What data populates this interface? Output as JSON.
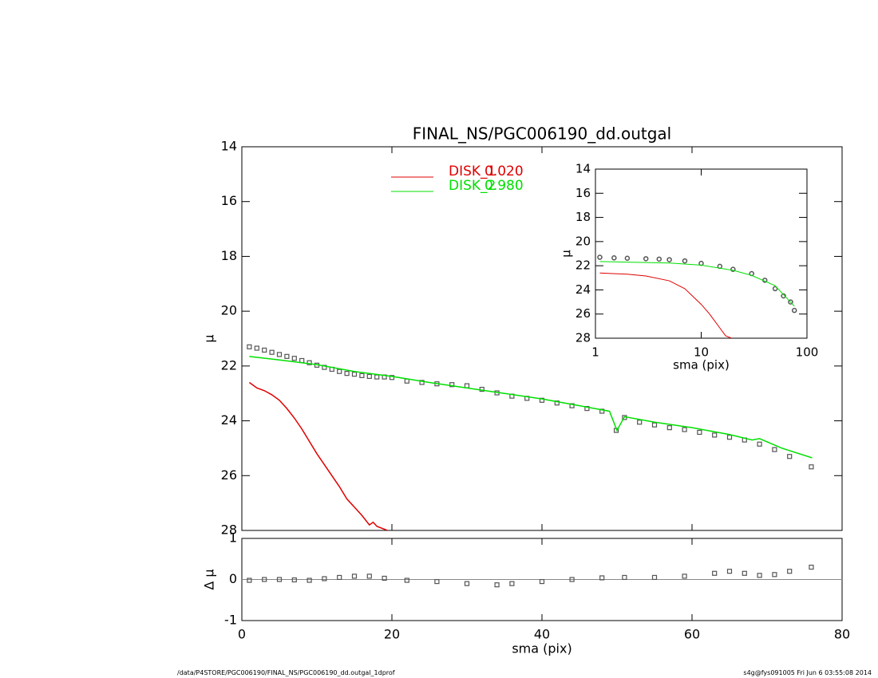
{
  "chart_data": [
    {
      "type": "line",
      "title": "FINAL_NS/PGC006190_dd.outgal",
      "ylabel": "μ",
      "xlim": [
        0,
        80
      ],
      "ylim": [
        28,
        14
      ],
      "xticks": [
        0,
        20,
        40,
        60,
        80
      ],
      "yticks": [
        14,
        16,
        18,
        20,
        22,
        24,
        26,
        28
      ],
      "xtick_labels": false,
      "series": [
        {
          "color": "#555555",
          "marker": "square",
          "x": [
            1,
            2,
            3,
            4,
            5,
            6,
            7,
            8,
            9,
            10,
            11,
            12,
            13,
            14,
            15,
            16,
            17,
            18,
            19,
            20,
            22,
            24,
            26,
            28,
            30,
            32,
            34,
            36,
            38,
            40,
            42,
            44,
            46,
            48,
            49.9,
            51,
            53,
            55,
            57,
            59,
            61,
            63,
            65,
            67,
            69,
            71,
            73,
            75.9
          ],
          "values": [
            21.3,
            21.35,
            21.42,
            21.5,
            21.58,
            21.65,
            21.72,
            21.8,
            21.88,
            21.97,
            22.05,
            22.12,
            22.2,
            22.27,
            22.3,
            22.35,
            22.38,
            22.4,
            22.4,
            22.42,
            22.55,
            22.6,
            22.65,
            22.68,
            22.72,
            22.85,
            22.98,
            23.1,
            23.18,
            23.25,
            23.35,
            23.45,
            23.55,
            23.65,
            24.35,
            23.88,
            24.05,
            24.15,
            24.25,
            24.32,
            24.42,
            24.52,
            24.6,
            24.7,
            24.85,
            25.05,
            25.3,
            25.68
          ]
        },
        {
          "name": "DISK_1",
          "fraction": {
            "value": 0.02,
            "label": "0.020"
          },
          "color": "#e00000",
          "x": [
            1,
            2,
            3,
            4,
            5,
            6,
            7,
            8,
            9,
            10,
            11,
            12,
            13,
            14,
            15,
            16,
            17,
            17.5,
            18,
            19.4
          ],
          "values": [
            22.6,
            22.8,
            22.9,
            23.05,
            23.25,
            23.55,
            23.9,
            24.3,
            24.75,
            25.2,
            25.6,
            26.0,
            26.4,
            26.85,
            27.15,
            27.45,
            27.8,
            27.7,
            27.85,
            28.0
          ]
        },
        {
          "name": "DISK_2",
          "fraction": {
            "value": 0.98,
            "label": "0.980"
          },
          "color": "#00e000",
          "x": [
            1,
            5,
            10,
            15,
            20,
            25,
            30,
            35,
            40,
            45,
            49,
            50,
            51,
            55,
            60,
            65,
            68,
            69,
            72,
            76
          ],
          "values": [
            21.65,
            21.78,
            21.95,
            22.2,
            22.38,
            22.6,
            22.8,
            23.0,
            23.2,
            23.45,
            23.65,
            24.35,
            23.85,
            24.05,
            24.25,
            24.5,
            24.7,
            24.65,
            25.0,
            25.35
          ]
        }
      ]
    },
    {
      "type": "line",
      "xlabel": "sma (pix)",
      "ylabel": "Δ μ",
      "xlim": [
        0,
        80
      ],
      "ylim": [
        -1,
        1
      ],
      "xticks": [
        0,
        20,
        40,
        60,
        80
      ],
      "yticks": [
        -1,
        0,
        1
      ],
      "zero_line": true,
      "series": [
        {
          "color": "#555555",
          "marker": "square",
          "x": [
            1,
            3,
            5,
            7,
            9,
            11,
            13,
            15,
            17,
            19,
            22,
            26,
            30,
            34,
            36,
            40,
            44,
            48,
            51,
            55,
            59,
            63,
            65,
            67,
            69,
            71,
            73,
            75.9
          ],
          "values": [
            -0.02,
            0,
            0,
            -0.01,
            -0.02,
            0.02,
            0.05,
            0.08,
            0.08,
            0.03,
            -0.02,
            -0.05,
            -0.1,
            -0.13,
            -0.1,
            -0.05,
            0,
            0.04,
            0.05,
            0.05,
            0.08,
            0.15,
            0.2,
            0.15,
            0.1,
            0.12,
            0.2,
            0.3
          ]
        }
      ]
    },
    {
      "type": "line",
      "xlabel": "sma (pix)",
      "ylabel": "μ",
      "log_x": true,
      "xlim": [
        1,
        100
      ],
      "ylim": [
        28,
        14
      ],
      "xticks": [
        1,
        10,
        100
      ],
      "yticks": [
        14,
        16,
        18,
        20,
        22,
        24,
        26,
        28
      ],
      "series": [
        {
          "color": "#555555",
          "marker": "circle",
          "x": [
            1.1,
            1.5,
            2,
            3,
            4,
            5,
            7,
            10,
            15,
            20,
            30,
            40,
            50,
            60,
            70,
            76
          ],
          "values": [
            21.3,
            21.35,
            21.38,
            21.42,
            21.45,
            21.5,
            21.6,
            21.8,
            22.05,
            22.3,
            22.65,
            23.2,
            23.9,
            24.5,
            25.0,
            25.7
          ]
        },
        {
          "color": "#e00000",
          "x": [
            1.1,
            2,
            3,
            5,
            7,
            10,
            12,
            15,
            17,
            19.4
          ],
          "values": [
            22.6,
            22.7,
            22.85,
            23.25,
            23.9,
            25.2,
            26.0,
            27.15,
            27.8,
            28.0
          ]
        },
        {
          "color": "#00e000",
          "x": [
            1.1,
            2,
            5,
            10,
            20,
            30,
            50,
            76
          ],
          "values": [
            21.65,
            21.7,
            21.78,
            21.95,
            22.38,
            22.8,
            23.65,
            25.35
          ]
        }
      ]
    }
  ],
  "footer": {
    "left": "/data/P4STORE/PGC006190/FINAL_NS/PGC006190_dd.outgal_1dprof",
    "right": "s4g@fys091005  Fri Jun  6 03:55:08 2014"
  }
}
